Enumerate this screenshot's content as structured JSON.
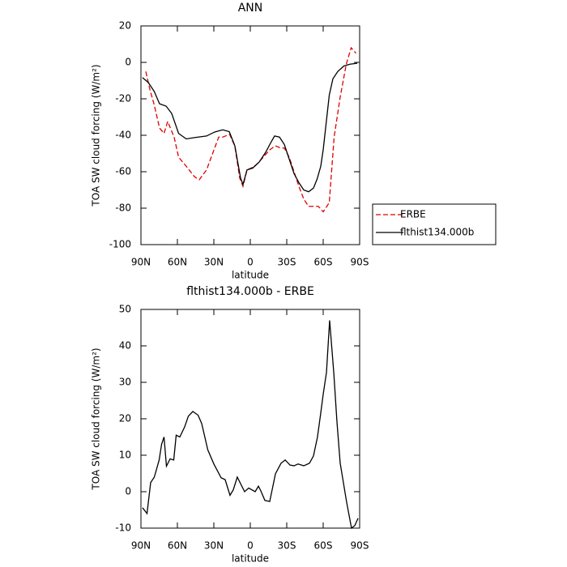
{
  "chart_data": [
    {
      "type": "line",
      "title": "ANN",
      "xlabel": "latitude",
      "ylabel": "TOA SW cloud forcing (W/m²)",
      "xlim": [
        90,
        -90
      ],
      "xticks": [
        {
          "value": 90,
          "label": "90N"
        },
        {
          "value": 60,
          "label": "60N"
        },
        {
          "value": 30,
          "label": "30N"
        },
        0,
        {
          "value": -30,
          "label": "30S"
        },
        {
          "value": -60,
          "label": "60S"
        },
        {
          "value": -90,
          "label": "90S"
        }
      ],
      "ylim": [
        -100,
        20
      ],
      "yticks": [
        -100,
        -80,
        -60,
        -40,
        -20,
        0,
        20
      ],
      "legend": "right",
      "series": [
        {
          "name": "ERBE",
          "color": "#e00000",
          "dash": true,
          "x": [
            86,
            82.7,
            79,
            74.7,
            71,
            68,
            62.7,
            59,
            52.7,
            46,
            42,
            36,
            31,
            26,
            22.7,
            17,
            12.7,
            8.7,
            6,
            2.7,
            -0.7,
            -5.3,
            -10.7,
            -16,
            -20.7,
            -25,
            -28,
            -32,
            -36,
            -40,
            -44,
            -48,
            -52,
            -56,
            -60,
            -65,
            -69,
            -74,
            -79,
            -83,
            -87
          ],
          "values": [
            -5,
            -14.7,
            -23.5,
            -36,
            -39,
            -32.4,
            -41,
            -52,
            -57,
            -62.7,
            -64.4,
            -59,
            -50,
            -41,
            -41,
            -39.5,
            -46,
            -63.5,
            -68,
            -59,
            -58,
            -56,
            -52,
            -48,
            -45.8,
            -47,
            -47,
            -52,
            -60,
            -68,
            -75,
            -79,
            -79,
            -79,
            -82,
            -77,
            -41,
            -19,
            -1,
            8,
            5
          ]
        },
        {
          "name": "flthist134.000b",
          "color": "#000000",
          "dash": false,
          "x": [
            88.7,
            84,
            79,
            74.7,
            69.3,
            64.7,
            59,
            52.7,
            46,
            36,
            29.3,
            22.7,
            17.3,
            12.7,
            8,
            6,
            2.7,
            -2,
            -7.3,
            -12.7,
            -17.3,
            -20,
            -24,
            -28,
            -32,
            -36,
            -40,
            -44,
            -48,
            -52,
            -55,
            -58,
            -60,
            -63,
            -65,
            -68,
            -72,
            -77,
            -82,
            -88
          ],
          "values": [
            -8.4,
            -11,
            -16,
            -22.7,
            -24,
            -28,
            -39,
            -42,
            -41.3,
            -40.4,
            -38.2,
            -37,
            -38,
            -45.8,
            -63.5,
            -67,
            -59,
            -58,
            -54.7,
            -49.3,
            -43.5,
            -40.4,
            -41,
            -45,
            -53,
            -61,
            -66,
            -70,
            -71,
            -69,
            -64,
            -57,
            -48,
            -30,
            -18,
            -9,
            -5,
            -2,
            -1,
            -0.5
          ]
        }
      ]
    },
    {
      "type": "line",
      "title": "flthist134.000b - ERBE",
      "xlabel": "latitude",
      "ylabel": "TOA SW cloud forcing (W/m²)",
      "xlim": [
        90,
        -90
      ],
      "xticks": [
        {
          "value": 90,
          "label": "90N"
        },
        {
          "value": 60,
          "label": "60N"
        },
        {
          "value": 30,
          "label": "30N"
        },
        0,
        {
          "value": -30,
          "label": "30S"
        },
        {
          "value": -60,
          "label": "60S"
        },
        {
          "value": -90,
          "label": "90S"
        }
      ],
      "ylim": [
        -10,
        50
      ],
      "yticks": [
        -10,
        0,
        10,
        20,
        30,
        40,
        50
      ],
      "series": [
        {
          "color": "#000000",
          "dash": false,
          "x": [
            88.7,
            85,
            82,
            79,
            75,
            73,
            71,
            69,
            66,
            63,
            61,
            58,
            54,
            51,
            47.3,
            43,
            40,
            35,
            30,
            24,
            20.7,
            16.7,
            14,
            10.7,
            4.7,
            1.3,
            -4,
            -6.7,
            -8.7,
            -12,
            -16,
            -20.7,
            -25.3,
            -28.7,
            -32.7,
            -36,
            -39.3,
            -44,
            -48.7,
            -52,
            -55.3,
            -58,
            -60,
            -62.7,
            -65.3,
            -68.7,
            -71.3,
            -74,
            -79.3,
            -83.3,
            -86,
            -88.7
          ],
          "values": [
            -4.4,
            -6,
            2.5,
            4,
            8.7,
            13,
            15,
            7,
            9,
            8.7,
            15.5,
            15,
            17.8,
            20.7,
            22,
            21,
            18.7,
            11.5,
            7.6,
            3.8,
            3.3,
            -1,
            0.5,
            4,
            0,
            1,
            0,
            1.5,
            0.2,
            -2.4,
            -2.7,
            4.9,
            7.8,
            8.7,
            7.3,
            7.1,
            7.6,
            7.1,
            7.8,
            9.8,
            15,
            21.6,
            26.7,
            32.7,
            47,
            32.7,
            19.3,
            7.8,
            -2.9,
            -10,
            -9.3,
            -7.3
          ]
        }
      ]
    }
  ]
}
